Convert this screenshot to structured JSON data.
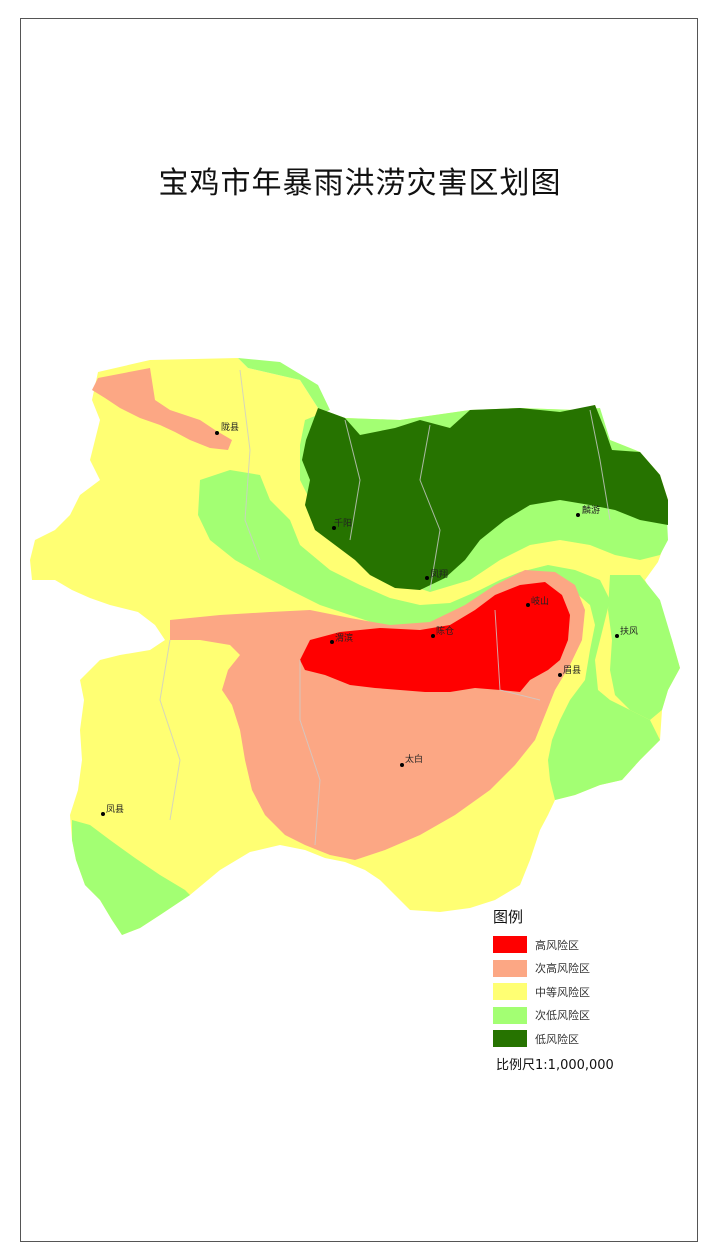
{
  "title": "宝鸡市年暴雨洪涝灾害区划图",
  "colors": {
    "high": "#ff0000",
    "sub_high": "#fca784",
    "medium": "#ffff73",
    "sub_low": "#a3ff73",
    "low": "#267300"
  },
  "cities": [
    {
      "name": "陇县",
      "key": "longxian"
    },
    {
      "name": "千阳",
      "key": "qianyang"
    },
    {
      "name": "麟游",
      "key": "linyou"
    },
    {
      "name": "凤翔",
      "key": "fengxiang"
    },
    {
      "name": "岐山",
      "key": "qishan"
    },
    {
      "name": "扶风",
      "key": "fufeng"
    },
    {
      "name": "陈仓",
      "key": "chencang"
    },
    {
      "name": "渭滨",
      "key": "weibin"
    },
    {
      "name": "眉县",
      "key": "meixian"
    },
    {
      "name": "太白",
      "key": "taibai"
    },
    {
      "name": "凤县",
      "key": "fengxian"
    }
  ],
  "legend": {
    "title": "图例",
    "items": [
      {
        "label": "高风险区",
        "color": "#ff0000"
      },
      {
        "label": "次高风险区",
        "color": "#fca784"
      },
      {
        "label": "中等风险区",
        "color": "#ffff73"
      },
      {
        "label": "次低风险区",
        "color": "#a3ff73"
      },
      {
        "label": "低风险区",
        "color": "#267300"
      }
    ]
  },
  "scale": {
    "label": "比例尺",
    "value": "1:1,000,000"
  }
}
